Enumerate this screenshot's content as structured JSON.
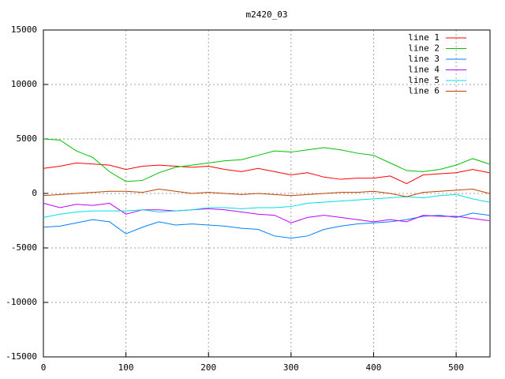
{
  "chart_data": {
    "type": "line",
    "title": "m2420_03",
    "x": [
      0,
      20,
      40,
      60,
      80,
      100,
      120,
      140,
      160,
      180,
      200,
      220,
      240,
      260,
      280,
      300,
      320,
      340,
      360,
      380,
      400,
      420,
      440,
      460,
      480,
      500,
      520,
      540
    ],
    "series": [
      {
        "name": "line 1",
        "color": "#ff0000",
        "values": [
          2300,
          2500,
          2800,
          2700,
          2600,
          2200,
          2500,
          2600,
          2500,
          2400,
          2500,
          2200,
          2000,
          2300,
          2000,
          1700,
          1900,
          1500,
          1300,
          1400,
          1400,
          1600,
          900,
          1700,
          1800,
          1900,
          2200,
          1900
        ]
      },
      {
        "name": "line 2",
        "color": "#00c000",
        "values": [
          5000,
          4900,
          3900,
          3300,
          2000,
          1100,
          1200,
          1900,
          2400,
          2600,
          2800,
          3000,
          3100,
          3500,
          3900,
          3800,
          4000,
          4200,
          4000,
          3700,
          3500,
          2800,
          2100,
          2000,
          2200,
          2600,
          3200,
          2700
        ]
      },
      {
        "name": "line 3",
        "color": "#0080ff",
        "values": [
          -3100,
          -3000,
          -2700,
          -2400,
          -2600,
          -3700,
          -3100,
          -2600,
          -2900,
          -2800,
          -2900,
          -3000,
          -3200,
          -3300,
          -3900,
          -4100,
          -3900,
          -3300,
          -3000,
          -2800,
          -2700,
          -2600,
          -2400,
          -2100,
          -2000,
          -2200,
          -1800,
          -2000
        ]
      },
      {
        "name": "line 4",
        "color": "#c000ff",
        "values": [
          -900,
          -1300,
          -1000,
          -1100,
          -900,
          -1900,
          -1500,
          -1500,
          -1600,
          -1500,
          -1400,
          -1500,
          -1700,
          -1900,
          -2000,
          -2700,
          -2200,
          -2000,
          -2200,
          -2400,
          -2600,
          -2400,
          -2600,
          -2000,
          -2100,
          -2100,
          -2300,
          -2500
        ]
      },
      {
        "name": "line 5",
        "color": "#00e0e0",
        "values": [
          -2200,
          -1900,
          -1700,
          -1600,
          -1600,
          -1600,
          -1500,
          -1700,
          -1600,
          -1500,
          -1300,
          -1300,
          -1400,
          -1300,
          -1300,
          -1200,
          -900,
          -800,
          -700,
          -600,
          -500,
          -400,
          -300,
          -400,
          -200,
          -100,
          -500,
          -800
        ]
      },
      {
        "name": "line 6",
        "color": "#c04000",
        "values": [
          -200,
          -100,
          0,
          100,
          200,
          200,
          100,
          400,
          200,
          0,
          100,
          0,
          -100,
          0,
          -100,
          -200,
          -100,
          0,
          100,
          100,
          200,
          0,
          -300,
          100,
          200,
          300,
          400,
          0
        ]
      }
    ],
    "xlim": [
      0,
      541
    ],
    "xticks": [
      0,
      100,
      200,
      300,
      400,
      500
    ],
    "ylim": [
      -15000,
      15000
    ],
    "yticks": [
      -15000,
      -10000,
      -5000,
      0,
      5000,
      10000,
      15000
    ],
    "grid": true,
    "legend": "top-right"
  }
}
